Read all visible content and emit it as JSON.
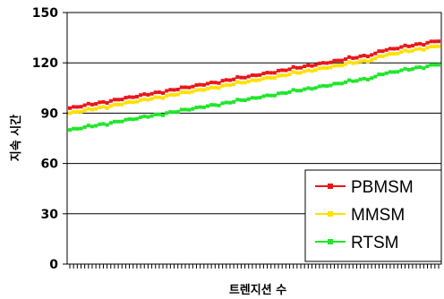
{
  "chart_data": {
    "type": "line",
    "xlabel": "트렌지션 수",
    "ylabel": "지속 시간",
    "ylim": [
      0,
      150
    ],
    "yticks": [
      0,
      30,
      60,
      90,
      120,
      150
    ],
    "grid": true,
    "legend_position": "bottom-right",
    "point_count": 100,
    "series": [
      {
        "name": "PBMSM",
        "color": "#e8161c",
        "start": 93,
        "end": 132
      },
      {
        "name": "MMSM",
        "color": "#ffe000",
        "start": 90,
        "end": 129
      },
      {
        "name": "RTSM",
        "color": "#1fe62a",
        "start": 80,
        "end": 118
      }
    ]
  }
}
